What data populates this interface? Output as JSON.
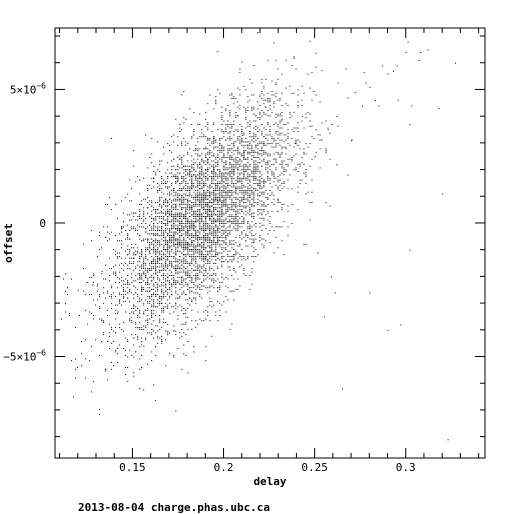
{
  "chart_data": {
    "type": "scatter",
    "title": "",
    "xlabel": "delay",
    "ylabel": "offset",
    "xlim": [
      0.1075,
      0.3435
    ],
    "ylim": [
      -8.8e-06,
      7.3e-06
    ],
    "x_ticks": [
      {
        "value": 0.15,
        "label": "0.15"
      },
      {
        "value": 0.2,
        "label": "0.2"
      },
      {
        "value": 0.25,
        "label": "0.25"
      },
      {
        "value": 0.3,
        "label": "0.3"
      }
    ],
    "y_ticks": [
      {
        "value": 5e-06,
        "mantissa": "5×10",
        "exp": "−6"
      },
      {
        "value": 0,
        "mantissa": "0",
        "exp": ""
      },
      {
        "value": -5e-06,
        "mantissa": "−5×10",
        "exp": "−6"
      }
    ],
    "grid": false,
    "series": [
      {
        "description": "dense cloud of timing samples, roughly elliptical, rising trend",
        "cloud": {
          "cx": 0.188,
          "cy": 2e-07,
          "sx": 0.025,
          "sy": 1.6e-06,
          "slope": 5.5e-05,
          "count": 5200
        },
        "outliers": [
          [
            0.113,
            -3e-06
          ],
          [
            0.12,
            -2.5e-06
          ],
          [
            0.128,
            -2.3e-06
          ],
          [
            0.133,
            -1.8e-06
          ],
          [
            0.156,
            -4.6e-06
          ],
          [
            0.17,
            -4.1e-06
          ],
          [
            0.255,
            -3.5e-06
          ],
          [
            0.261,
            -2.6e-06
          ],
          [
            0.259,
            -2e-06
          ],
          [
            0.28,
            -2.6e-06
          ],
          [
            0.29,
            -4e-06
          ],
          [
            0.297,
            -3.8e-06
          ],
          [
            0.265,
            -6.2e-06
          ],
          [
            0.323,
            -8.1e-06
          ],
          [
            0.302,
            -1e-06
          ],
          [
            0.32,
            1.1e-06
          ],
          [
            0.262,
            2.2e-06
          ],
          [
            0.27,
            3.1e-06
          ],
          [
            0.276,
            4.4e-06
          ],
          [
            0.283,
            4.6e-06
          ],
          [
            0.28,
            5.1e-06
          ],
          [
            0.287,
            5.9e-06
          ],
          [
            0.29,
            5.6e-06
          ],
          [
            0.295,
            5.9e-06
          ],
          [
            0.301,
            6.8e-06
          ],
          [
            0.3,
            6.4e-06
          ],
          [
            0.308,
            6.4e-06
          ],
          [
            0.312,
            6.5e-06
          ],
          [
            0.327,
            6e-06
          ],
          [
            0.293,
            5.7e-06
          ],
          [
            0.302,
            3.7e-06
          ],
          [
            0.307,
            6.1e-06
          ],
          [
            0.272,
            4.9e-06
          ],
          [
            0.268,
            4.7e-06
          ],
          [
            0.285,
            4.4e-06
          ],
          [
            0.262,
            4e-06
          ],
          [
            0.303,
            4.4e-06
          ],
          [
            0.243,
            4e-06
          ],
          [
            0.231,
            4.1e-06
          ],
          [
            0.21,
            3.3e-06
          ],
          [
            0.239,
            3e-06
          ],
          [
            0.25,
            2.5e-06
          ],
          [
            0.245,
            1.9e-06
          ],
          [
            0.318,
            4.3e-06
          ]
        ]
      }
    ]
  },
  "footer": {
    "text": "2013-08-04 charge.phas.ubc.ca"
  }
}
